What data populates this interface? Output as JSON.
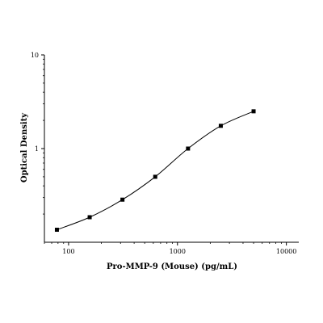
{
  "chart_data": {
    "type": "scatter",
    "title": "",
    "xlabel": "Pro-MMP-9 (Mouse) (pg/mL)",
    "ylabel": "Optical Density",
    "xscale": "log",
    "yscale": "log",
    "xlim": [
      60,
      13000
    ],
    "ylim": [
      0.1,
      10
    ],
    "xticks": [
      100,
      1000,
      10000
    ],
    "xtick_labels": [
      "100",
      "1000",
      "10000"
    ],
    "yticks": [
      1,
      10
    ],
    "ytick_labels": [
      "1",
      "10"
    ],
    "grid": false,
    "legend": "none",
    "series": [
      {
        "x": [
          78.125,
          156.25,
          312.5,
          625,
          1250,
          2500,
          5000
        ],
        "y": [
          0.136,
          0.185,
          0.285,
          0.5,
          1.0,
          1.75,
          2.5
        ],
        "marker": "square",
        "fit": "4-parameter logistic"
      }
    ],
    "colors": {
      "marker": "#000000",
      "line": "#000000",
      "axis": "#000000"
    }
  }
}
